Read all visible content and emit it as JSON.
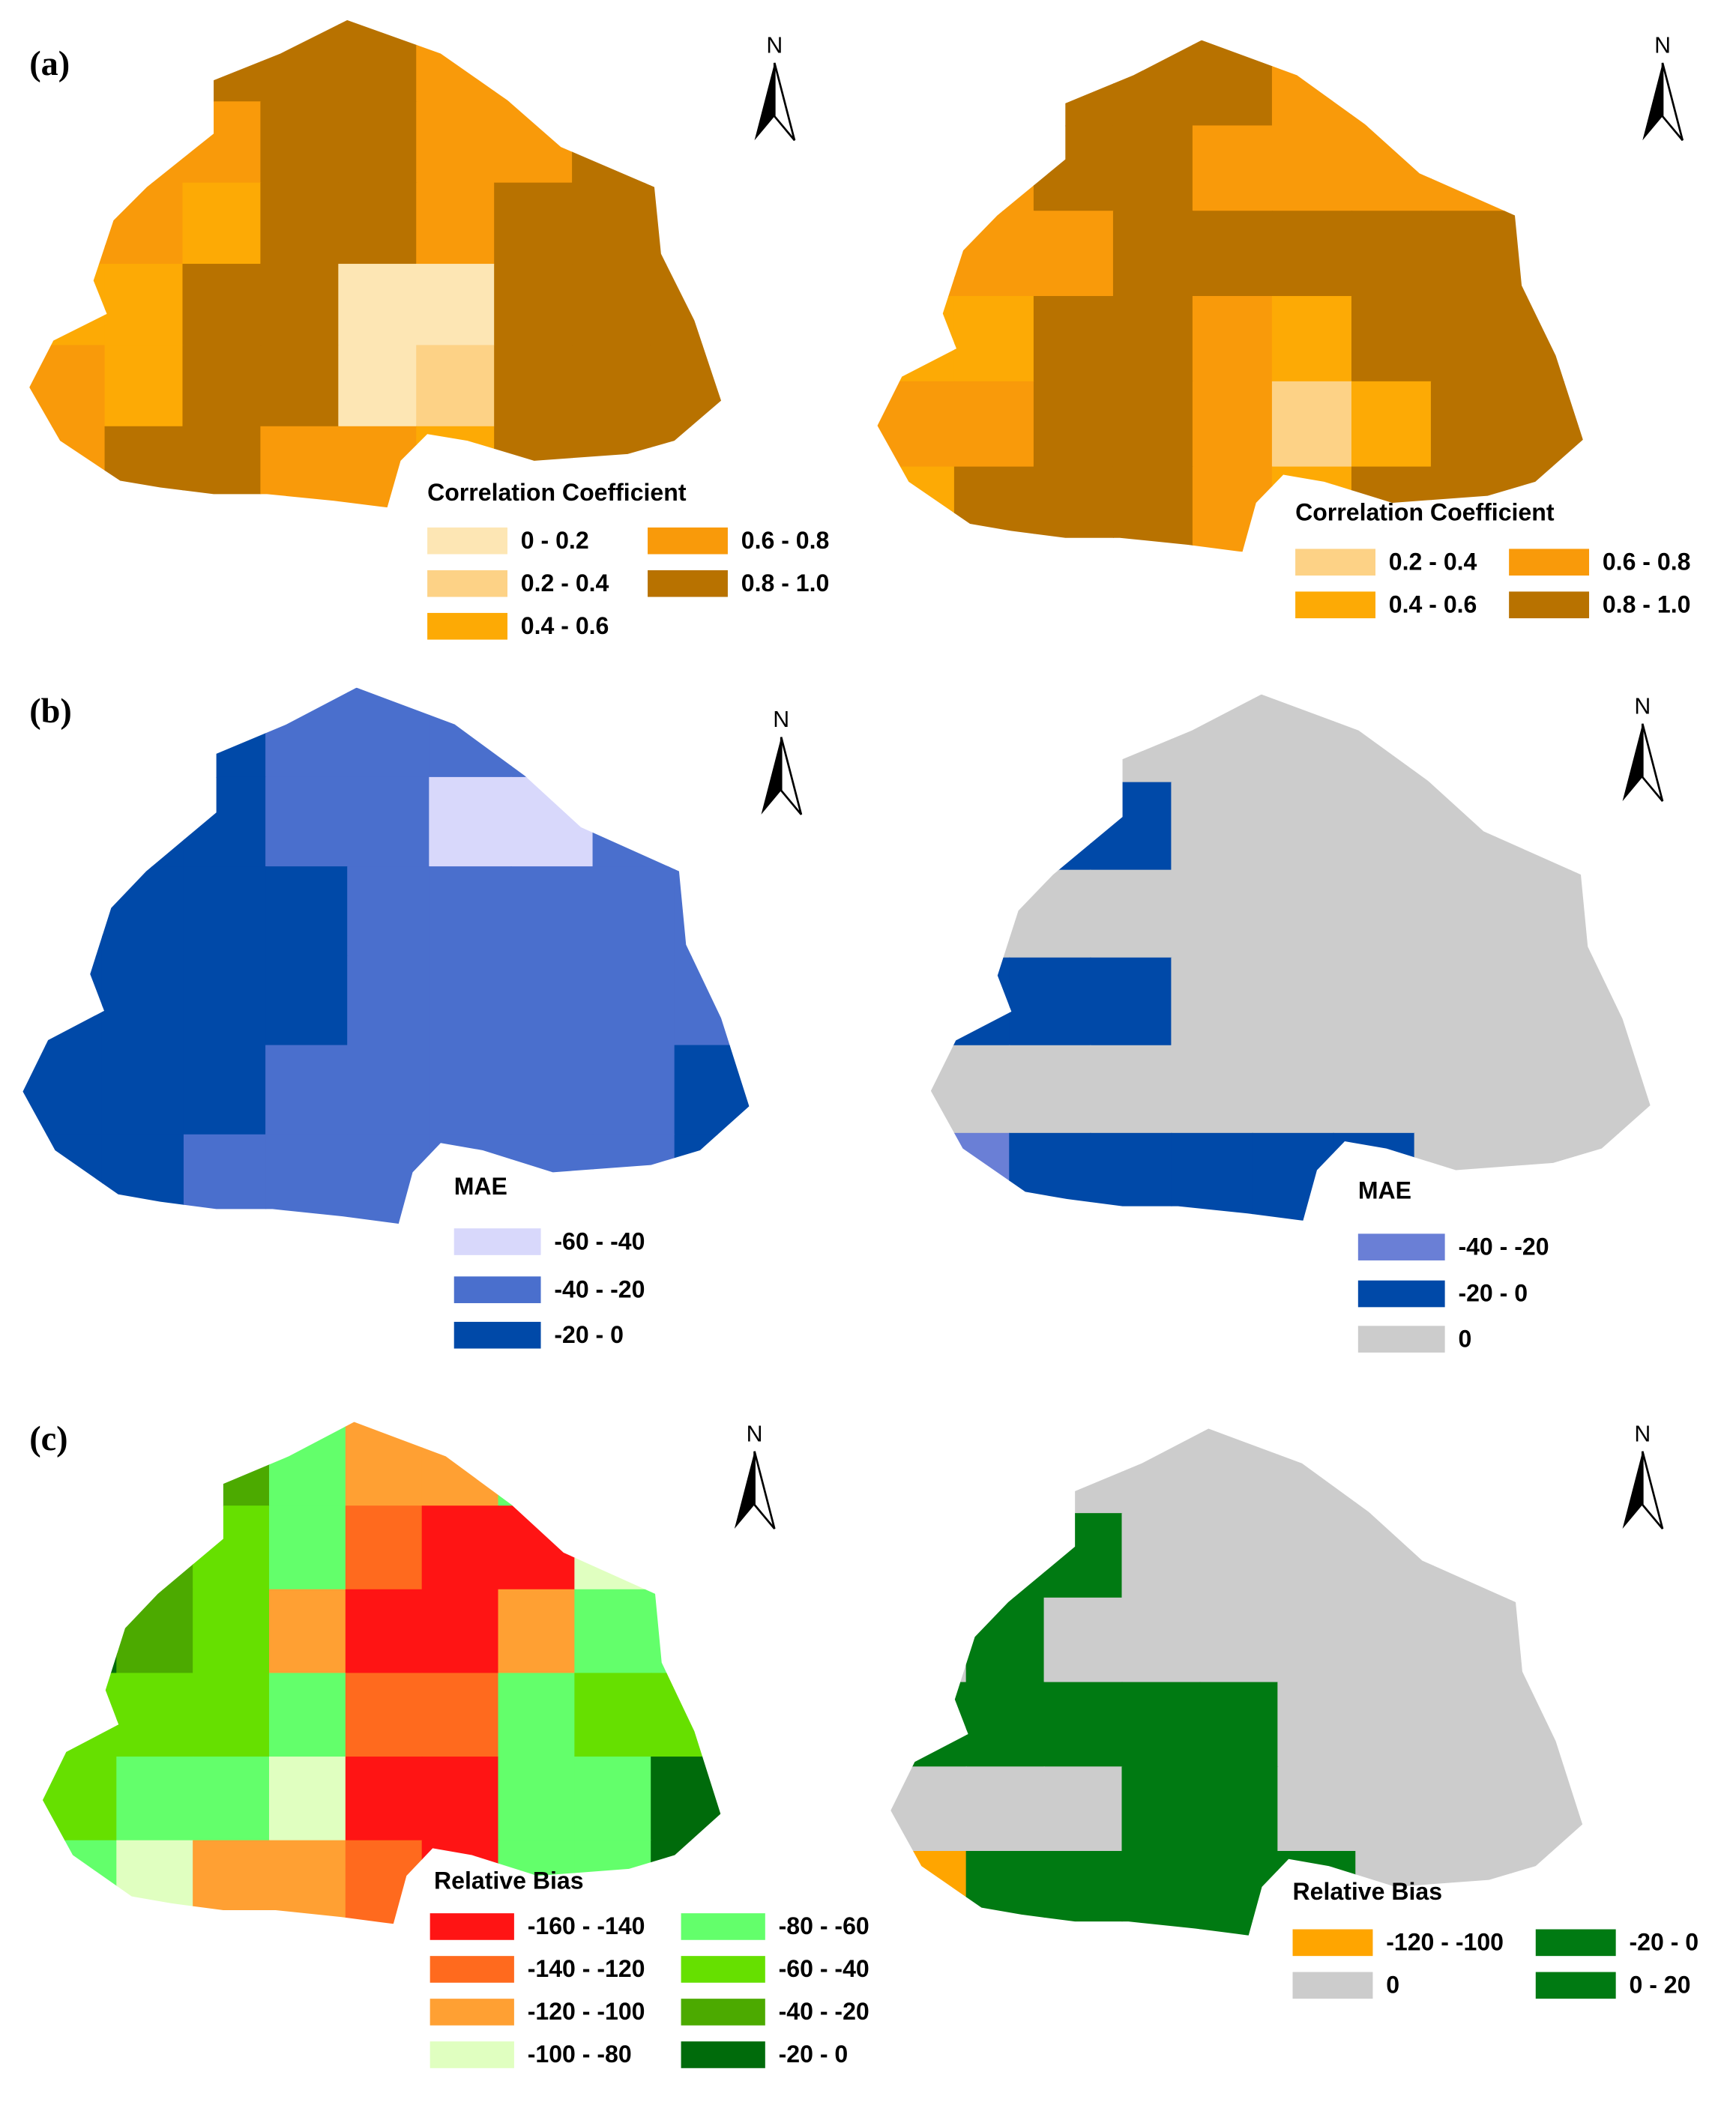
{
  "panels": [
    {
      "label": "(a)",
      "maps": [
        {
          "north": "N",
          "legend": {
            "title": "Correlation Coefficient",
            "items": [
              {
                "label": "0 - 0.2",
                "color": "#fde6b4"
              },
              {
                "label": "0.2 - 0.4",
                "color": "#fdd286"
              },
              {
                "label": "0.4 - 0.6",
                "color": "#fdaa05"
              },
              {
                "label": "0.6 - 0.8",
                "color": "#f99a0a"
              },
              {
                "label": "0.8 - 1.0",
                "color": "#b87200"
              }
            ]
          }
        },
        {
          "north": "N",
          "legend": {
            "title": "Correlation Coefficient",
            "items": [
              {
                "label": "0.2 - 0.4",
                "color": "#fdd286"
              },
              {
                "label": "0.4 - 0.6",
                "color": "#fdaa05"
              },
              {
                "label": "0.6 - 0.8",
                "color": "#f99a0a"
              },
              {
                "label": "0.8 - 1.0",
                "color": "#b87200"
              }
            ]
          }
        }
      ]
    },
    {
      "label": "(b)",
      "maps": [
        {
          "north": "N",
          "legend": {
            "title": "MAE",
            "items": [
              {
                "label": "-60 - -40",
                "color": "#d8d8fb"
              },
              {
                "label": "-40 - -20",
                "color": "#4a6fcd"
              },
              {
                "label": "-20 - 0",
                "color": "#0049a8"
              }
            ]
          }
        },
        {
          "north": "N",
          "legend": {
            "title": "MAE",
            "items": [
              {
                "label": "-40 - -20",
                "color": "#6a7fd6"
              },
              {
                "label": "-20 - 0",
                "color": "#0049a8"
              },
              {
                "label": "0",
                "color": "#cccccc"
              }
            ]
          }
        }
      ]
    },
    {
      "label": "(c)",
      "maps": [
        {
          "north": "N",
          "legend": {
            "title": "Relative Bias",
            "items": [
              {
                "label": "-160 - -140",
                "color": "#ff1414"
              },
              {
                "label": "-140 - -120",
                "color": "#ff6a1e"
              },
              {
                "label": "-120 - -100",
                "color": "#ffa033"
              },
              {
                "label": "-100 - -80",
                "color": "#e0ffc0"
              },
              {
                "label": "-80 - -60",
                "color": "#63ff6b"
              },
              {
                "label": "-60 - -40",
                "color": "#66e000"
              },
              {
                "label": "-40 - -20",
                "color": "#4caa00"
              },
              {
                "label": "-20 - 0",
                "color": "#006b0b"
              }
            ]
          }
        },
        {
          "north": "N",
          "legend": {
            "title": "Relative Bias",
            "items": [
              {
                "label": "-120 - -100",
                "color": "#ffa500"
              },
              {
                "label": "0",
                "color": "#cccccc"
              },
              {
                "label": "-20 - 0",
                "color": "#007a12"
              },
              {
                "label": "0 - 20",
                "color": "#007a12"
              }
            ]
          }
        }
      ]
    }
  ]
}
